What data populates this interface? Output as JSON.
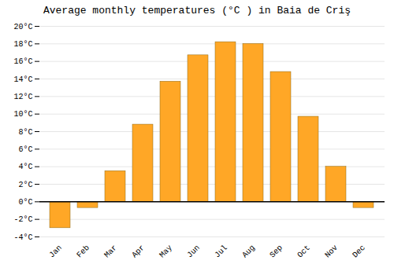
{
  "chart_data": {
    "type": "bar",
    "title": "Average monthly temperatures (°C ) in Baia de Criş",
    "categories": [
      "Jan",
      "Feb",
      "Mar",
      "Apr",
      "May",
      "Jun",
      "Jul",
      "Aug",
      "Sep",
      "Oct",
      "Nov",
      "Dec"
    ],
    "values": [
      -3.0,
      -0.7,
      3.5,
      8.8,
      13.7,
      16.7,
      18.2,
      18.0,
      14.8,
      9.7,
      4.0,
      -0.7
    ],
    "color": "#FFA726",
    "ylim": [
      -4,
      20
    ],
    "yticks": [
      {
        "value": -4,
        "label": "-4°C"
      },
      {
        "value": -2,
        "label": "-2°C"
      },
      {
        "value": 0,
        "label": "0°C"
      },
      {
        "value": 2,
        "label": "2°C"
      },
      {
        "value": 4,
        "label": "4°C"
      },
      {
        "value": 6,
        "label": "6°C"
      },
      {
        "value": 8,
        "label": "8°C"
      },
      {
        "value": 10,
        "label": "10°C"
      },
      {
        "value": 12,
        "label": "12°C"
      },
      {
        "value": 14,
        "label": "14°C"
      },
      {
        "value": 16,
        "label": "16°C"
      },
      {
        "value": 18,
        "label": "18°C"
      },
      {
        "value": 20,
        "label": "20°C"
      }
    ],
    "grid": true
  }
}
